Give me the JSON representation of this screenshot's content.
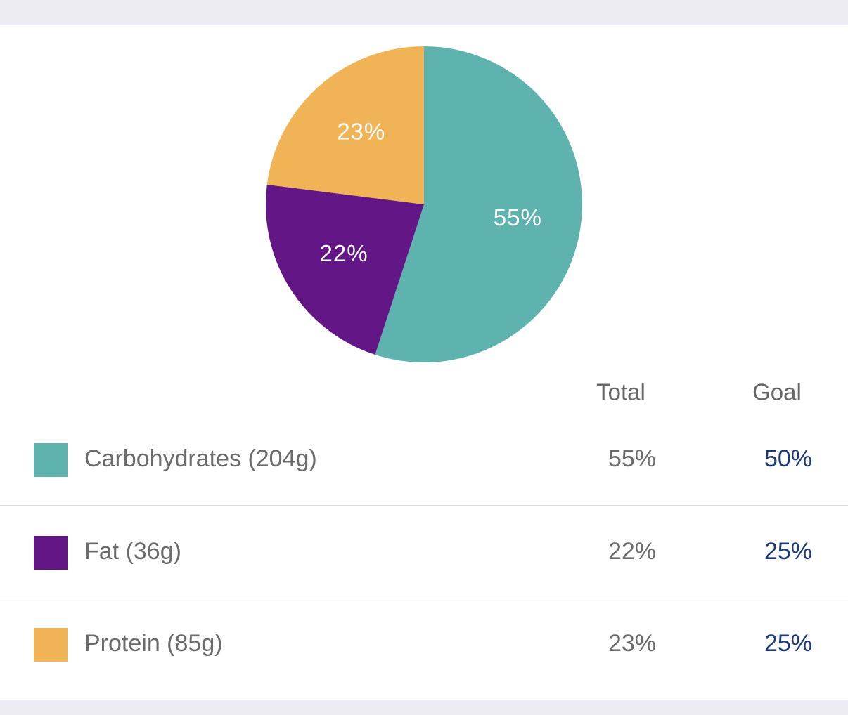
{
  "chart_data": {
    "type": "pie",
    "categories": [
      "Carbohydrates (204g)",
      "Fat (36g)",
      "Protein (85g)"
    ],
    "values": [
      55,
      22,
      23
    ],
    "value_labels": [
      "55%",
      "22%",
      "23%"
    ],
    "colors": [
      "#5fb3ae",
      "#631686",
      "#f0b457"
    ]
  },
  "table": {
    "headers": [
      "Total",
      "Goal"
    ],
    "rows": [
      [
        "55%",
        "50%"
      ],
      [
        "22%",
        "25%"
      ],
      [
        "23%",
        "25%"
      ]
    ]
  }
}
